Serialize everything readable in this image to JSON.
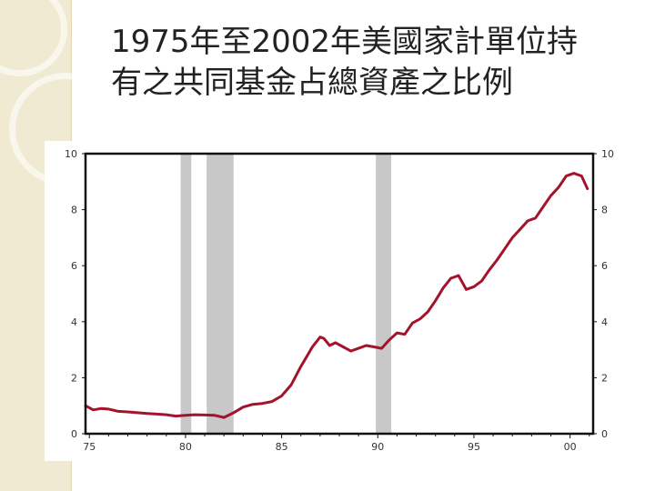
{
  "slide": {
    "title_line1": "1975年至2002年美國家計單位持",
    "title_line2": "有之共同基金占總資產之比例"
  },
  "colors": {
    "line": "#a3142c",
    "recession": "#c8c8c8",
    "frame": "#111111",
    "strip": "#f1ead3"
  },
  "chart_data": {
    "type": "line",
    "title": "1975年至2002年美國家計單位持有之共同基金占總資產之比例",
    "xlabel": "",
    "ylabel": "",
    "xlim": [
      1974.8,
      2001.2
    ],
    "ylim": [
      0,
      10
    ],
    "x_tick_values": [
      1975,
      1980,
      1985,
      1990,
      1995,
      2000
    ],
    "x_tick_labels": [
      "75",
      "80",
      "85",
      "90",
      "95",
      "00"
    ],
    "y_ticks": [
      0,
      2,
      4,
      6,
      8,
      10
    ],
    "y_tick_labels_left": [
      "0",
      "2",
      "4",
      "6",
      "8",
      "10"
    ],
    "y_tick_labels_right": [
      "0",
      "2",
      "4",
      "6",
      "8",
      "10"
    ],
    "grid": false,
    "recession_bands": [
      {
        "start": 1979.75,
        "end": 1980.3
      },
      {
        "start": 1981.1,
        "end": 1982.5
      },
      {
        "start": 1989.9,
        "end": 1990.7
      }
    ],
    "series": [
      {
        "x": [
          1974.8,
          1975.2,
          1975.6,
          1976.0,
          1976.5,
          1977.0,
          1977.5,
          1978.0,
          1978.5,
          1979.0,
          1979.5,
          1980.0,
          1980.5,
          1981.0,
          1981.5,
          1982.0,
          1982.5,
          1983.0,
          1983.5,
          1984.0,
          1984.5,
          1985.0,
          1985.5,
          1986.0,
          1986.3,
          1986.6,
          1987.0,
          1987.2,
          1987.5,
          1987.8,
          1988.2,
          1988.6,
          1989.0,
          1989.4,
          1989.8,
          1990.2,
          1990.6,
          1991.0,
          1991.4,
          1991.8,
          1992.2,
          1992.6,
          1993.0,
          1993.4,
          1993.8,
          1994.2,
          1994.6,
          1995.0,
          1995.4,
          1995.8,
          1996.2,
          1996.6,
          1997.0,
          1997.4,
          1997.8,
          1998.2,
          1998.6,
          1999.0,
          1999.4,
          1999.8,
          2000.2,
          2000.6,
          2000.9
        ],
        "y": [
          1.0,
          0.85,
          0.9,
          0.88,
          0.8,
          0.78,
          0.75,
          0.72,
          0.7,
          0.68,
          0.63,
          0.66,
          0.68,
          0.67,
          0.66,
          0.58,
          0.75,
          0.95,
          1.05,
          1.08,
          1.15,
          1.35,
          1.75,
          2.4,
          2.75,
          3.1,
          3.45,
          3.4,
          3.15,
          3.25,
          3.1,
          2.95,
          3.05,
          3.15,
          3.1,
          3.05,
          3.35,
          3.6,
          3.55,
          3.95,
          4.1,
          4.35,
          4.75,
          5.2,
          5.55,
          5.65,
          5.15,
          5.25,
          5.45,
          5.85,
          6.2,
          6.6,
          7.0,
          7.3,
          7.6,
          7.7,
          8.1,
          8.5,
          8.8,
          9.2,
          9.3,
          9.2,
          8.75
        ]
      }
    ]
  }
}
